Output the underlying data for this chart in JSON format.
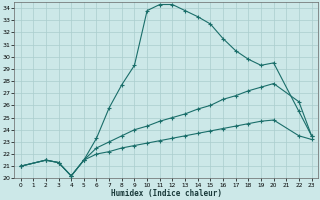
{
  "xlabel": "Humidex (Indice chaleur)",
  "bg_color": "#cce8e8",
  "grid_color": "#aacece",
  "line_color": "#1a6e6a",
  "xlim": [
    -0.5,
    23.5
  ],
  "ylim": [
    20,
    34.5
  ],
  "xticks": [
    0,
    1,
    2,
    3,
    4,
    5,
    6,
    7,
    8,
    9,
    10,
    11,
    12,
    13,
    14,
    15,
    16,
    17,
    18,
    19,
    20,
    21,
    22,
    23
  ],
  "yticks": [
    20,
    21,
    22,
    23,
    24,
    25,
    26,
    27,
    28,
    29,
    30,
    31,
    32,
    33,
    34
  ],
  "line1_x": [
    0,
    2,
    3,
    4,
    5,
    6,
    7,
    8,
    9,
    10,
    11,
    12,
    13,
    14,
    15,
    16,
    17,
    18,
    19,
    20,
    22,
    23
  ],
  "line1_y": [
    21.0,
    21.5,
    21.3,
    20.2,
    21.5,
    23.3,
    25.8,
    27.7,
    29.3,
    33.8,
    34.3,
    34.3,
    33.8,
    33.3,
    32.7,
    31.5,
    30.5,
    29.8,
    29.3,
    29.5,
    25.5,
    23.5
  ],
  "line2_x": [
    0,
    2,
    3,
    4,
    5,
    6,
    7,
    8,
    9,
    10,
    11,
    12,
    13,
    14,
    15,
    16,
    17,
    18,
    19,
    20,
    22,
    23
  ],
  "line2_y": [
    21.0,
    21.5,
    21.3,
    20.2,
    21.5,
    22.5,
    23.0,
    23.5,
    24.0,
    24.3,
    24.7,
    25.0,
    25.3,
    25.7,
    26.0,
    26.5,
    26.8,
    27.2,
    27.5,
    27.8,
    26.3,
    23.5
  ],
  "line3_x": [
    0,
    2,
    3,
    4,
    5,
    6,
    7,
    8,
    9,
    10,
    11,
    12,
    13,
    14,
    15,
    16,
    17,
    18,
    19,
    20,
    22,
    23
  ],
  "line3_y": [
    21.0,
    21.5,
    21.3,
    20.2,
    21.5,
    22.0,
    22.2,
    22.5,
    22.7,
    22.9,
    23.1,
    23.3,
    23.5,
    23.7,
    23.9,
    24.1,
    24.3,
    24.5,
    24.7,
    24.8,
    23.5,
    23.2
  ]
}
